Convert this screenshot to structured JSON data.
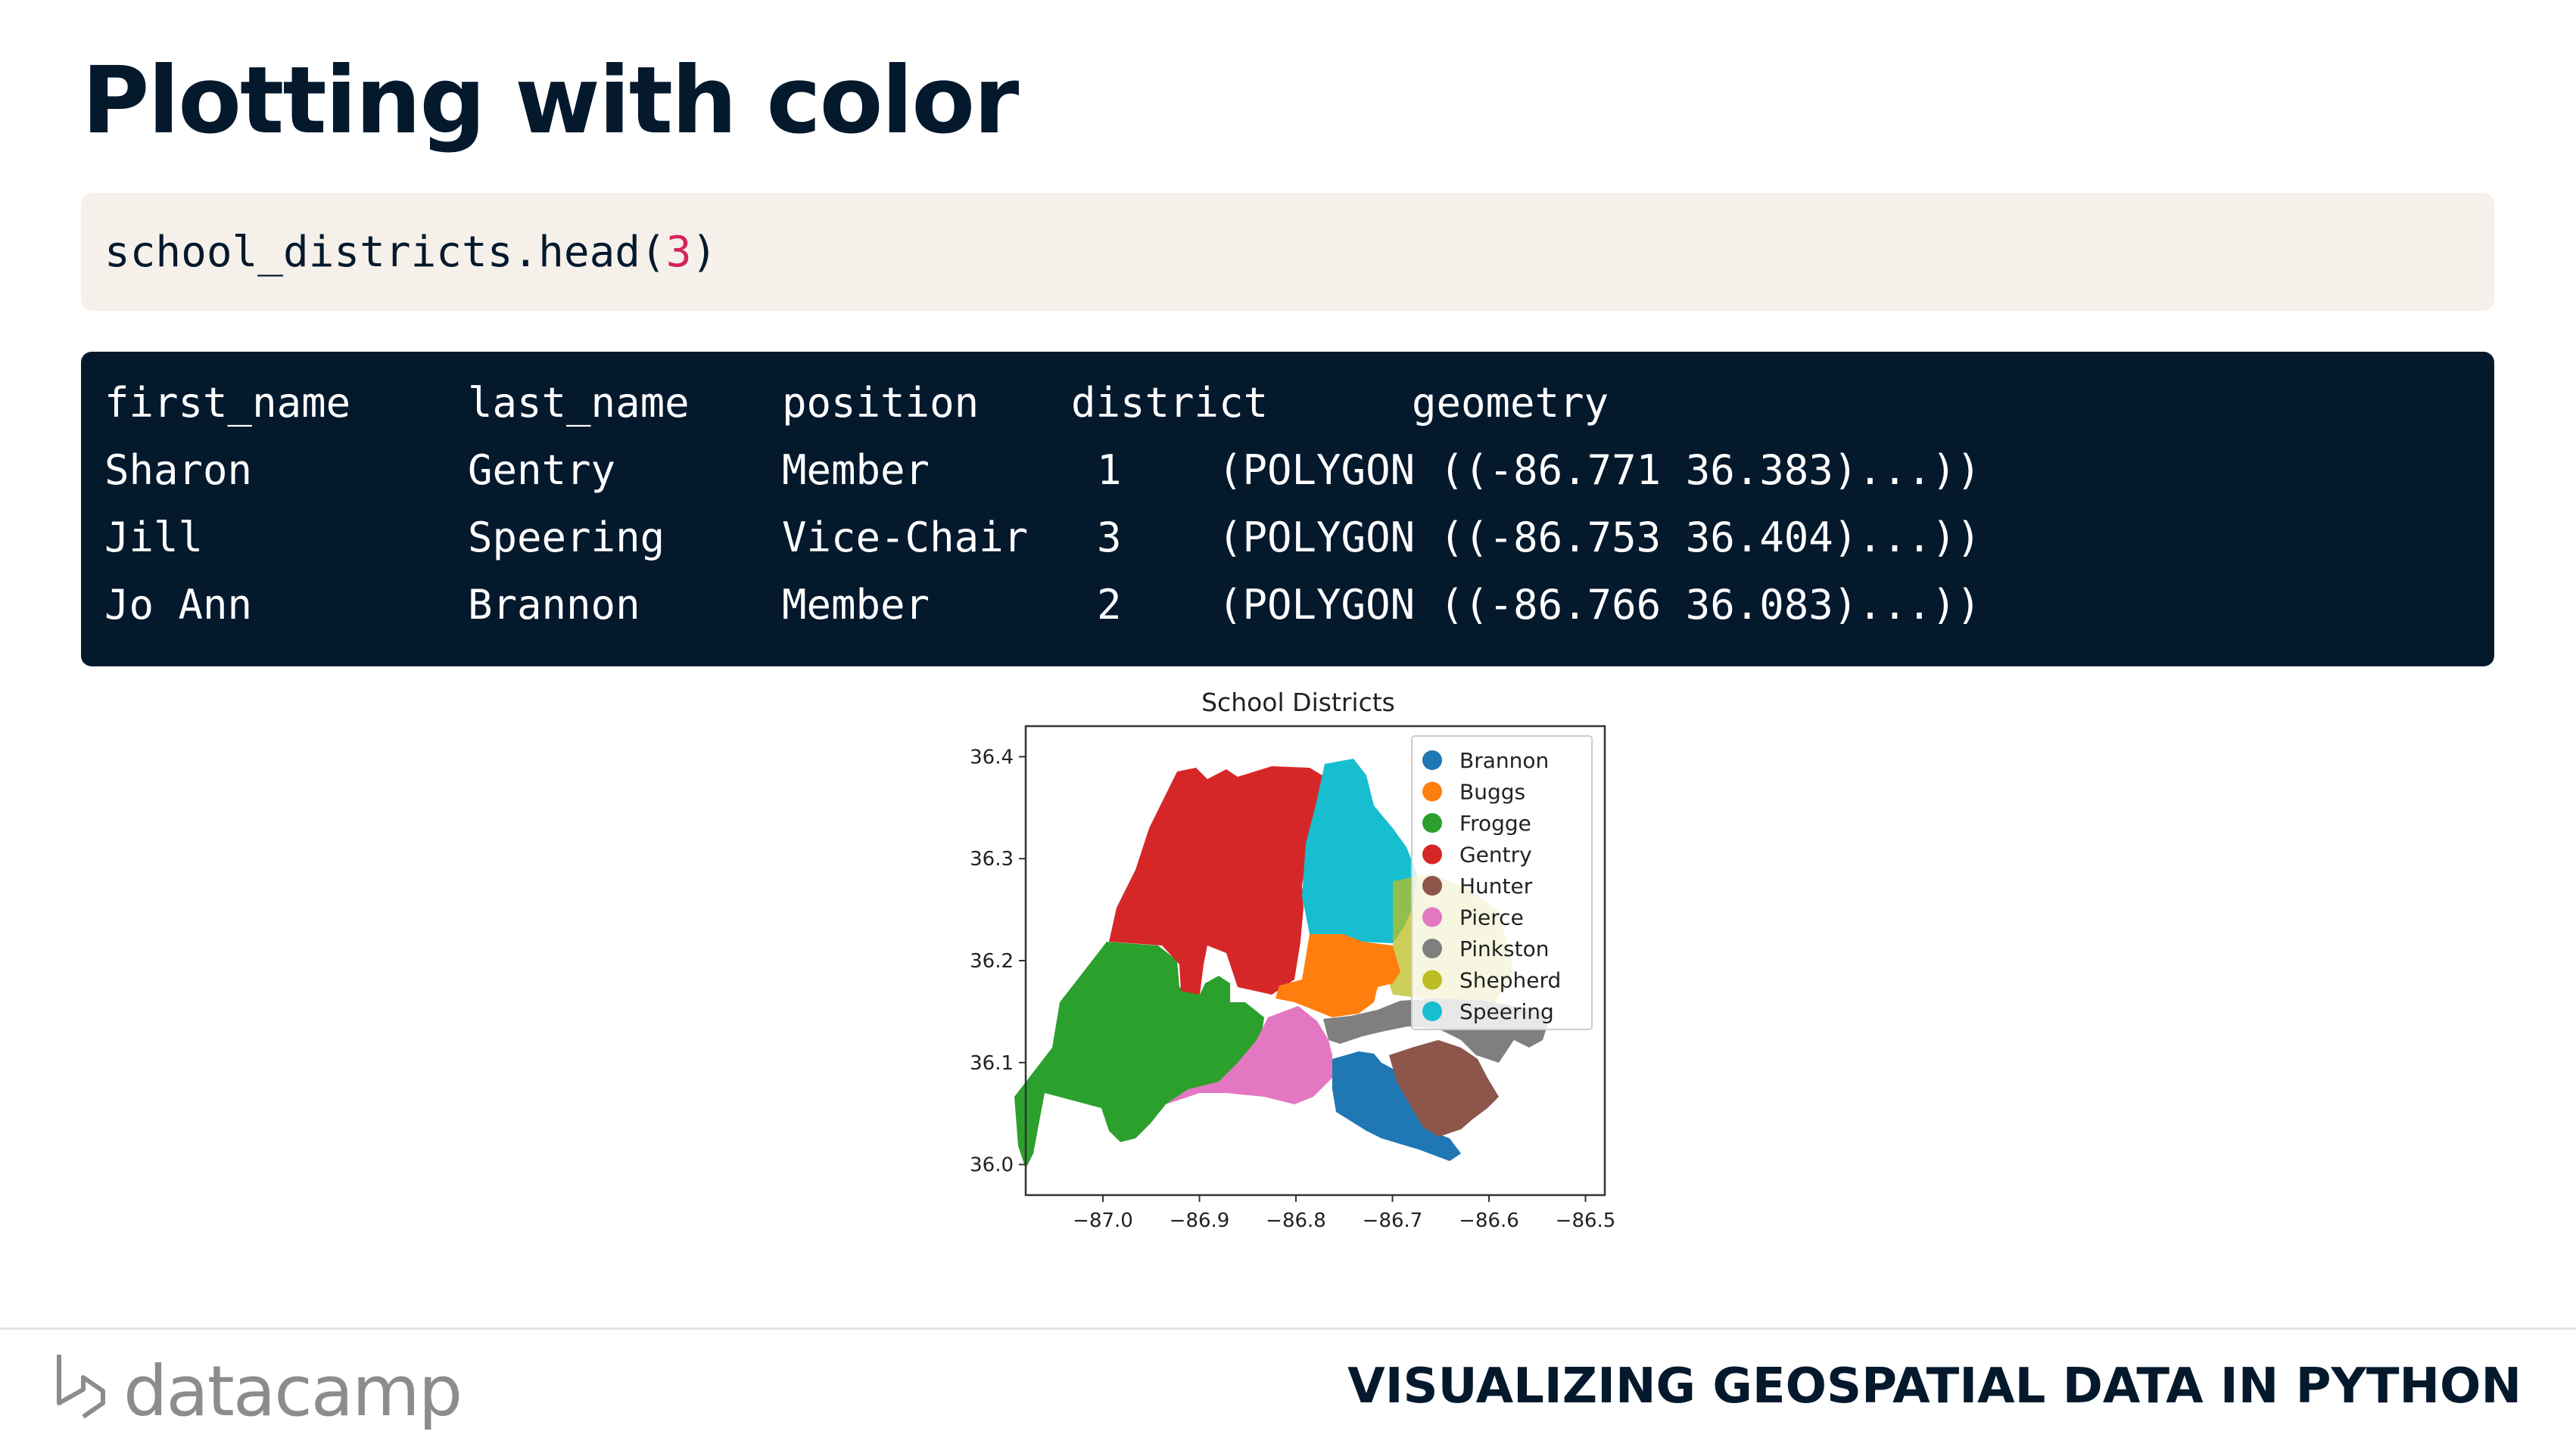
{
  "slide": {
    "title": "Plotting with color"
  },
  "code": {
    "prefix": "school_districts.head(",
    "number": "3",
    "suffix": ")"
  },
  "table": {
    "columns": [
      "first_name",
      "last_name",
      "position",
      "district",
      "geometry"
    ],
    "rows": [
      [
        "Sharon",
        "Gentry",
        "Member",
        "1",
        "(POLYGON ((-86.771 36.383)...))"
      ],
      [
        "Jill",
        "Speering",
        "Vice-Chair",
        "3",
        "(POLYGON ((-86.753 36.404)...))"
      ],
      [
        "Jo Ann",
        "Brannon",
        "Member",
        "2",
        "(POLYGON ((-86.766 36.083)...))"
      ]
    ]
  },
  "chart_data": {
    "type": "map",
    "title": "School Districts",
    "xlim": [
      -87.08,
      -86.48
    ],
    "ylim": [
      35.97,
      36.43
    ],
    "xticks": [
      -87.0,
      -86.9,
      -86.8,
      -86.7,
      -86.6,
      -86.5
    ],
    "yticks": [
      36.0,
      36.1,
      36.2,
      36.3,
      36.4
    ],
    "xtick_labels": [
      "−87.0",
      "−86.9",
      "−86.8",
      "−86.7",
      "−86.6",
      "−86.5"
    ],
    "ytick_labels": [
      "36.0",
      "36.1",
      "36.2",
      "36.3",
      "36.4"
    ],
    "legend_position": "top-right",
    "legend": [
      {
        "name": "Brannon",
        "color": "#1f77b4"
      },
      {
        "name": "Buggs",
        "color": "#ff7f0e"
      },
      {
        "name": "Frogge",
        "color": "#2ca02c"
      },
      {
        "name": "Gentry",
        "color": "#d62728"
      },
      {
        "name": "Hunter",
        "color": "#8c564b"
      },
      {
        "name": "Pierce",
        "color": "#e377c2"
      },
      {
        "name": "Pinkston",
        "color": "#7f7f7f"
      },
      {
        "name": "Shepherd",
        "color": "#bcbd22"
      },
      {
        "name": "Speering",
        "color": "#17becf"
      }
    ]
  },
  "footer": {
    "logo_text": "datacamp",
    "course_title": "VISUALIZING GEOSPATIAL DATA IN PYTHON"
  }
}
